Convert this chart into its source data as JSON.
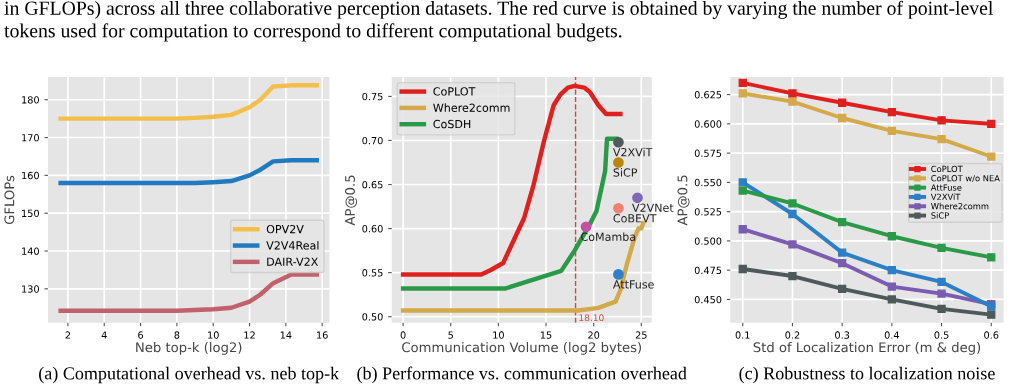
{
  "chart_data": [
    {
      "type": "other",
      "annotations": [
        "in GFLOPs) across all three collaborative perception datasets. The red curve is obtained by varying the number of point-level",
        "tokens used for computation to correspond to different computational budgets."
      ]
    },
    {
      "type": "line",
      "xlabel": "Neb top-k (log2)",
      "ylabel": "GFLOPs",
      "xlim": [
        0.9,
        16.4
      ],
      "ylim": [
        121,
        186
      ],
      "xticks": [
        2,
        4,
        6,
        8,
        10,
        12,
        14,
        16
      ],
      "yticks": [
        130,
        140,
        150,
        160,
        170,
        180
      ],
      "grid": true,
      "legend": "right",
      "marker": "none",
      "line_style": "solid",
      "annotations": [
        "(a) Computational overhead vs. neb top-k"
      ],
      "x": [
        1.6,
        4,
        8,
        9,
        10,
        11,
        12,
        12.6,
        13.3,
        14.3,
        15.7
      ],
      "series": [
        {
          "name": "OPV2V",
          "color": "#f5bd4a",
          "values": [
            175,
            175,
            175,
            175.2,
            175.5,
            176,
            178,
            180,
            183.5,
            183.8,
            183.8
          ]
        },
        {
          "name": "V2V4Real",
          "color": "#1f7ac0",
          "values": [
            158,
            158,
            158,
            158,
            158.2,
            158.5,
            160,
            161.5,
            163.7,
            164,
            164
          ]
        },
        {
          "name": "DAIR-V2X",
          "color": "#c2606c",
          "values": [
            124.2,
            124.2,
            124.2,
            124.4,
            124.6,
            125,
            126.6,
            128.5,
            131.5,
            133.8,
            133.8
          ]
        }
      ]
    },
    {
      "type": "line",
      "xlabel": "Communication Volume (log2 bytes)",
      "ylabel": "AP@0.5",
      "xlim": [
        -1.2,
        26.1
      ],
      "ylim": [
        0.493,
        0.772
      ],
      "xticks": [
        0,
        5,
        10,
        15,
        20,
        25
      ],
      "yticks": [
        {
          "value": 0.5,
          "label": "0.50"
        },
        {
          "value": 0.55,
          "label": "0.55"
        },
        {
          "value": 0.6,
          "label": "0.60"
        },
        {
          "value": 0.65,
          "label": "0.65"
        },
        {
          "value": 0.7,
          "label": "0.70"
        },
        {
          "value": 0.75,
          "label": "0.75"
        }
      ],
      "grid": true,
      "legend": "top left",
      "marker": "none",
      "line_style": "solid",
      "annotations": [
        "(b) Performance vs. communication overhead"
      ],
      "ref_lines": [
        {
          "axis": "x",
          "value": 18.1,
          "label": "18.10",
          "color": "#d64545",
          "line_style": "dashed"
        }
      ],
      "series": [
        {
          "name": "CoPLOT",
          "color": "#e0201e",
          "x": [
            0,
            8.2,
            9.2,
            10.5,
            12.7,
            13.7,
            14.8,
            15.8,
            16.5,
            17.3,
            18,
            19,
            19.6,
            20.5,
            21.3,
            22.8
          ],
          "values": [
            0.548,
            0.548,
            0.553,
            0.561,
            0.612,
            0.65,
            0.7,
            0.74,
            0.752,
            0.76,
            0.762,
            0.76,
            0.755,
            0.74,
            0.73,
            0.73
          ]
        },
        {
          "name": "Where2comm",
          "color": "#d4a94a",
          "x": [
            0,
            18.4,
            20.5,
            21.5,
            22.3,
            22.8,
            23.5,
            24.3,
            24.7,
            25,
            25.2
          ],
          "values": [
            0.507,
            0.507,
            0.51,
            0.514,
            0.517,
            0.53,
            0.56,
            0.59,
            0.6,
            0.6,
            0.606
          ]
        },
        {
          "name": "CoSDH",
          "color": "#2a9a48",
          "x": [
            0,
            10.7,
            12.5,
            16.6,
            18,
            19.6,
            20.3,
            21.2,
            21.4,
            22.4
          ],
          "values": [
            0.532,
            0.532,
            0.538,
            0.552,
            0.575,
            0.605,
            0.62,
            0.665,
            0.702,
            0.702
          ]
        },
        {
          "name": "V2XViT",
          "type": "scatter",
          "marker": "circle",
          "color": "#505a5a",
          "x": [
            22.6
          ],
          "values": [
            0.698
          ]
        },
        {
          "name": "SiCP",
          "type": "scatter",
          "marker": "circle",
          "color": "#b8860b",
          "x": [
            22.6
          ],
          "values": [
            0.675
          ]
        },
        {
          "name": "V2VNet",
          "type": "scatter",
          "marker": "circle",
          "color": "#7e68b8",
          "x": [
            24.6
          ],
          "values": [
            0.635
          ]
        },
        {
          "name": "CoBEVT",
          "type": "scatter",
          "marker": "circle",
          "color": "#f08070",
          "x": [
            22.6
          ],
          "values": [
            0.623
          ]
        },
        {
          "name": "CoMamba",
          "type": "scatter",
          "marker": "circle",
          "color": "#c050a0",
          "x": [
            19.2
          ],
          "values": [
            0.602
          ]
        },
        {
          "name": "AttFuse",
          "type": "scatter",
          "marker": "circle",
          "color": "#3080c8",
          "x": [
            22.6
          ],
          "values": [
            0.548
          ]
        }
      ]
    },
    {
      "type": "line",
      "xlabel": "Std of Localization Error (m & deg)",
      "ylabel": "AP@0.5",
      "xlim": [
        0.075,
        0.625
      ],
      "ylim": [
        0.43,
        0.64
      ],
      "xticks": [
        0.1,
        0.2,
        0.3,
        0.4,
        0.5,
        0.6
      ],
      "yticks": [
        {
          "value": 0.45,
          "label": "0.450"
        },
        {
          "value": 0.475,
          "label": "0.475"
        },
        {
          "value": 0.5,
          "label": "0.500"
        },
        {
          "value": 0.525,
          "label": "0.525"
        },
        {
          "value": 0.55,
          "label": "0.550"
        },
        {
          "value": 0.575,
          "label": "0.575"
        },
        {
          "value": 0.6,
          "label": "0.600"
        },
        {
          "value": 0.625,
          "label": "0.625"
        }
      ],
      "grid": true,
      "legend": "right",
      "marker": "square",
      "line_style": "solid",
      "annotations": [
        "(c) Robustness to localization noise"
      ],
      "x": [
        0.1,
        0.2,
        0.3,
        0.4,
        0.5,
        0.6
      ],
      "series": [
        {
          "name": "CoPLOT",
          "color": "#e0201e",
          "values": [
            0.635,
            0.626,
            0.618,
            0.61,
            0.603,
            0.6
          ]
        },
        {
          "name": "CoPLOT w/o NEA",
          "color": "#d4a94a",
          "values": [
            0.626,
            0.619,
            0.605,
            0.594,
            0.587,
            0.572
          ]
        },
        {
          "name": "AttFuse",
          "color": "#2a9a48",
          "values": [
            0.543,
            0.532,
            0.516,
            0.504,
            0.494,
            0.486
          ]
        },
        {
          "name": "V2XViT",
          "color": "#2c7fc4",
          "values": [
            0.55,
            0.523,
            0.49,
            0.475,
            0.465,
            0.444
          ]
        },
        {
          "name": "Where2comm",
          "color": "#7a5cb0",
          "values": [
            0.51,
            0.497,
            0.481,
            0.461,
            0.455,
            0.446
          ]
        },
        {
          "name": "SiCP",
          "color": "#4e5a5a",
          "values": [
            0.476,
            0.47,
            0.459,
            0.45,
            0.442,
            0.437
          ]
        }
      ]
    }
  ]
}
